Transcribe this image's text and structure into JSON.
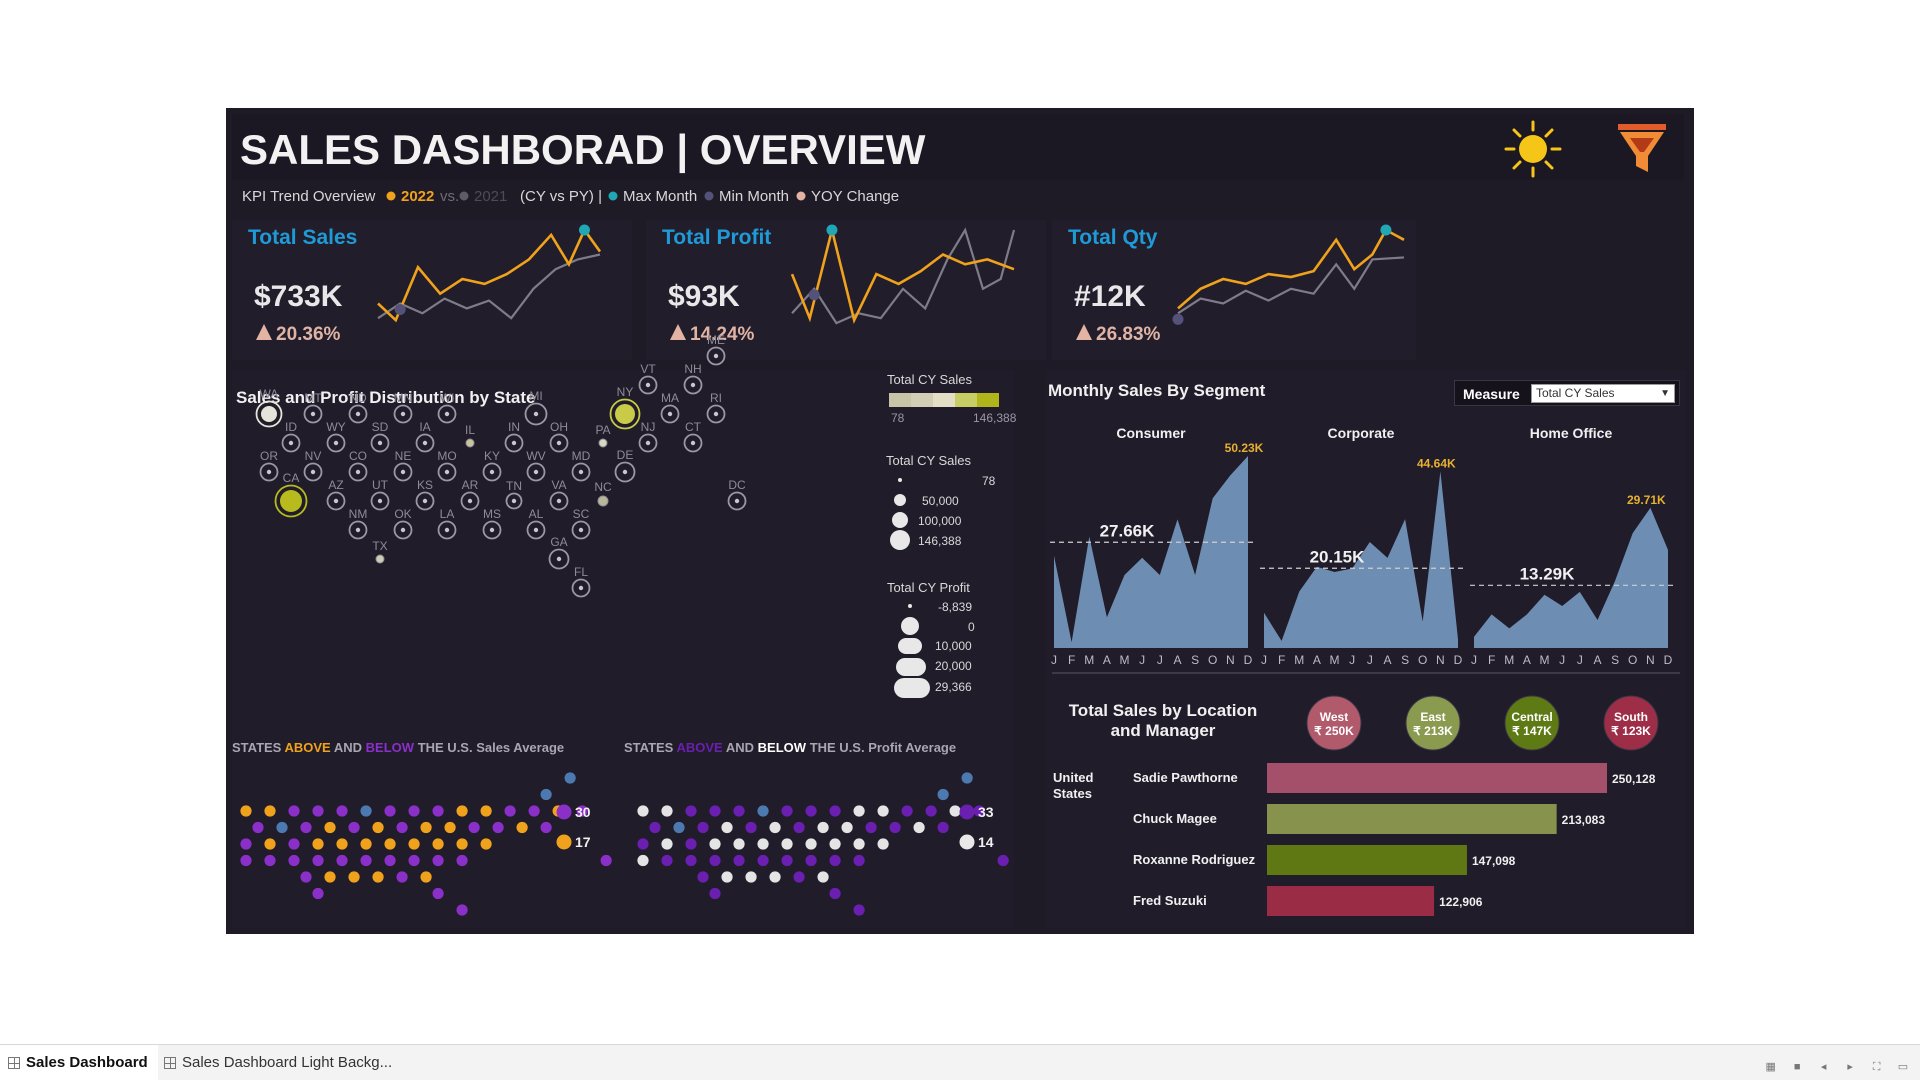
{
  "title": "SALES DASHBORAD | OVERVIEW",
  "legend": {
    "prefix": "KPI Trend Overview",
    "cy": "2022",
    "vs": "vs.",
    "py": "2021",
    "suffix": "(CY vs PY) |",
    "max": "Max Month",
    "min": "Min Month",
    "yoy": "YOY Change"
  },
  "icons": {
    "theme": "sun-icon",
    "filter": "funnel-icon"
  },
  "colors": {
    "cy": "#f0a21c",
    "py": "#8a8794",
    "max": "#20a6b4",
    "min": "#55527a",
    "yoy": "#e3b3a3",
    "kpi": "#1f9ad6"
  },
  "kpis": [
    {
      "label": "Total Sales",
      "value": "$733K",
      "change": "20.36%"
    },
    {
      "label": "Total Profit",
      "value": "$93K",
      "change": "14.24%"
    },
    {
      "label": "Total Qty",
      "value": "#12K",
      "change": "26.83%"
    }
  ],
  "state_map": {
    "title": "Sales and Profit Distribution by State",
    "color_legend": {
      "title": "Total CY Sales",
      "min": "78",
      "max": "146,388"
    },
    "size_legend": {
      "title": "Total CY Sales",
      "items": [
        "78",
        "50,000",
        "100,000",
        "146,388"
      ]
    },
    "profit_legend": {
      "title": "Total CY Profit",
      "items": [
        "-8,839",
        "0",
        "10,000",
        "20,000",
        "29,366"
      ]
    },
    "states": [
      "WA",
      "MT",
      "ND",
      "MN",
      "WI",
      "MI",
      "NY",
      "VT",
      "NH",
      "ME",
      "ID",
      "WY",
      "SD",
      "IA",
      "IL",
      "IN",
      "OH",
      "PA",
      "NJ",
      "MA",
      "CT",
      "RI",
      "OR",
      "NV",
      "CO",
      "NE",
      "MO",
      "KY",
      "WV",
      "MD",
      "DE",
      "CA",
      "AZ",
      "UT",
      "KS",
      "AR",
      "TN",
      "VA",
      "NC",
      "DC",
      "NM",
      "OK",
      "LA",
      "MS",
      "AL",
      "SC",
      "GA",
      "TX",
      "FL"
    ]
  },
  "sales_avg": {
    "title_a": "STATES",
    "above": "ABOVE",
    "and": "AND",
    "below": "BELOW",
    "title_b": "THE U.S. Sales Average",
    "count_above": "30",
    "count_below": "17"
  },
  "profit_avg": {
    "title_a": "STATES",
    "above": "ABOVE",
    "and": "AND",
    "below": "BELOW",
    "title_b": "THE U.S. Profit Average",
    "count_above": "33",
    "count_below": "14"
  },
  "segments": {
    "title": "Monthly Sales By Segment",
    "measure_label": "Measure",
    "measure_value": "Total CY Sales",
    "months": [
      "J",
      "F",
      "M",
      "A",
      "M",
      "J",
      "J",
      "A",
      "S",
      "O",
      "N",
      "D"
    ],
    "items": [
      {
        "name": "Consumer",
        "avg": "27.66K",
        "max": "50.23K",
        "values": [
          0.48,
          0.03,
          0.58,
          0.16,
          0.38,
          0.47,
          0.38,
          0.67,
          0.38,
          0.78,
          0.9,
          1.0
        ]
      },
      {
        "name": "Corporate",
        "avg": "20.15K",
        "max": "44.64K",
        "values": [
          0.2,
          0.04,
          0.32,
          0.46,
          0.43,
          0.45,
          0.6,
          0.51,
          0.73,
          0.15,
          1.0,
          0.05
        ]
      },
      {
        "name": "Home Office",
        "avg": "13.29K",
        "max": "29.71K",
        "values": [
          0.08,
          0.24,
          0.14,
          0.24,
          0.38,
          0.3,
          0.4,
          0.2,
          0.48,
          0.82,
          1.0,
          0.7
        ]
      }
    ]
  },
  "locations": {
    "title_1": "Total Sales by Location",
    "title_2": "and Manager",
    "country_1": "United",
    "country_2": "States",
    "regions": [
      {
        "name": "West",
        "value": "₹ 250K",
        "color": "#b05a6c"
      },
      {
        "name": "East",
        "value": "₹ 213K",
        "color": "#8a9a4e"
      },
      {
        "name": "Central",
        "value": "₹ 147K",
        "color": "#5e7a14"
      },
      {
        "name": "South",
        "value": "₹ 123K",
        "color": "#9e2d48"
      }
    ],
    "managers": [
      {
        "name": "Sadie Pawthorne",
        "value": 250128,
        "label": "250,128",
        "color": "#a4506a"
      },
      {
        "name": "Chuck Magee",
        "value": 213083,
        "label": "213,083",
        "color": "#87924c"
      },
      {
        "name": "Roxanne Rodriguez",
        "value": 147098,
        "label": "147,098",
        "color": "#5f7814"
      },
      {
        "name": "Fred Suzuki",
        "value": 122906,
        "label": "122,906",
        "color": "#9a2c45"
      }
    ]
  },
  "tabs": [
    {
      "label": "Sales Dashboard"
    },
    {
      "label": "Sales Dashboard Light Backg..."
    }
  ]
}
